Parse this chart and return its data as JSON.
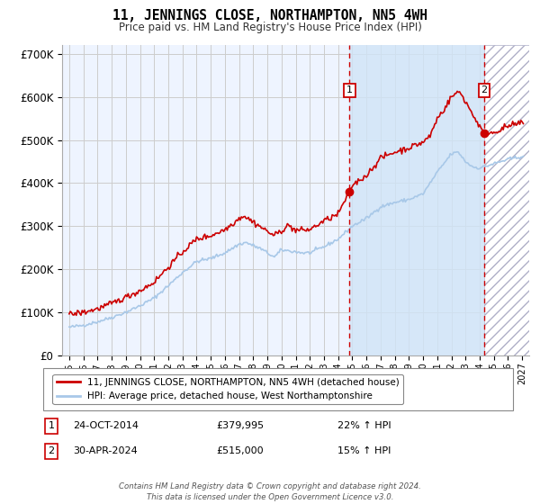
{
  "title": "11, JENNINGS CLOSE, NORTHAMPTON, NN5 4WH",
  "subtitle": "Price paid vs. HM Land Registry's House Price Index (HPI)",
  "legend_line1": "11, JENNINGS CLOSE, NORTHAMPTON, NN5 4WH (detached house)",
  "legend_line2": "HPI: Average price, detached house, West Northamptonshire",
  "sale1_label": "1",
  "sale1_date": "24-OCT-2014",
  "sale1_price": "£379,995",
  "sale1_hpi": "22% ↑ HPI",
  "sale1_year": 2014.8,
  "sale1_value": 379995,
  "sale2_label": "2",
  "sale2_date": "30-APR-2024",
  "sale2_price": "£515,000",
  "sale2_hpi": "15% ↑ HPI",
  "sale2_year": 2024.33,
  "sale2_value": 515000,
  "footer": "Contains HM Land Registry data © Crown copyright and database right 2024.\nThis data is licensed under the Open Government Licence v3.0.",
  "hpi_color": "#a8c8e8",
  "price_color": "#cc0000",
  "shade_color": "#d0e4f7",
  "plot_bg_color": "#eef4ff",
  "ylim": [
    0,
    720000
  ],
  "yticks": [
    0,
    100000,
    200000,
    300000,
    400000,
    500000,
    600000,
    700000
  ],
  "xlim_start": 1994.5,
  "xlim_end": 2027.5,
  "grid_color": "#cccccc",
  "vline_color": "#cc0000"
}
